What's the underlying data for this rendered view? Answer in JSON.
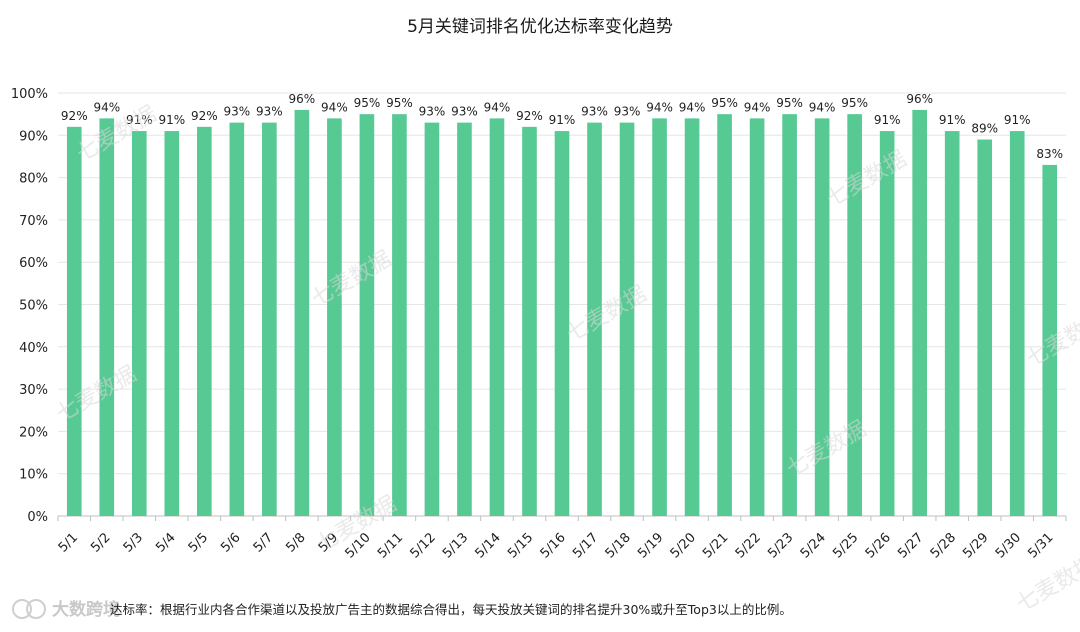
{
  "chart_data": {
    "type": "bar",
    "title": "5月关键词排名优化达标率变化趋势",
    "xlabel": "",
    "ylabel": "",
    "ylim": [
      0,
      100
    ],
    "y_ticks": [
      "0%",
      "10%",
      "20%",
      "30%",
      "40%",
      "50%",
      "60%",
      "70%",
      "80%",
      "90%",
      "100%"
    ],
    "y_tick_values": [
      0,
      10,
      20,
      30,
      40,
      50,
      60,
      70,
      80,
      90,
      100
    ],
    "categories": [
      "5/1",
      "5/2",
      "5/3",
      "5/4",
      "5/5",
      "5/6",
      "5/7",
      "5/8",
      "5/9",
      "5/10",
      "5/11",
      "5/12",
      "5/13",
      "5/14",
      "5/15",
      "5/16",
      "5/17",
      "5/18",
      "5/19",
      "5/20",
      "5/21",
      "5/22",
      "5/23",
      "5/24",
      "5/25",
      "5/26",
      "5/27",
      "5/28",
      "5/29",
      "5/30",
      "5/31"
    ],
    "values": [
      92,
      94,
      91,
      91,
      92,
      93,
      93,
      96,
      94,
      95,
      95,
      93,
      93,
      94,
      92,
      91,
      93,
      93,
      94,
      94,
      95,
      94,
      95,
      94,
      95,
      91,
      96,
      91,
      89,
      91,
      83
    ],
    "value_labels": [
      "92%",
      "94%",
      "91%",
      "91%",
      "92%",
      "93%",
      "93%",
      "96%",
      "94%",
      "95%",
      "95%",
      "93%",
      "93%",
      "94%",
      "92%",
      "91%",
      "93%",
      "93%",
      "94%",
      "94%",
      "95%",
      "94%",
      "95%",
      "94%",
      "95%",
      "91%",
      "96%",
      "91%",
      "89%",
      "91%",
      "83%"
    ],
    "bar_color": "#57c993",
    "grid": true,
    "grid_color": "#e6e6e6",
    "axis_color": "#bfbfbf",
    "legend": "none"
  },
  "footnote": "达标率：根据行业内各合作渠道以及投放广告主的数据综合得出，每天投放关键词的排名提升30%或升至Top3以上的比例。",
  "watermark": {
    "text": "七麦数据",
    "brand": "大数跨境"
  }
}
